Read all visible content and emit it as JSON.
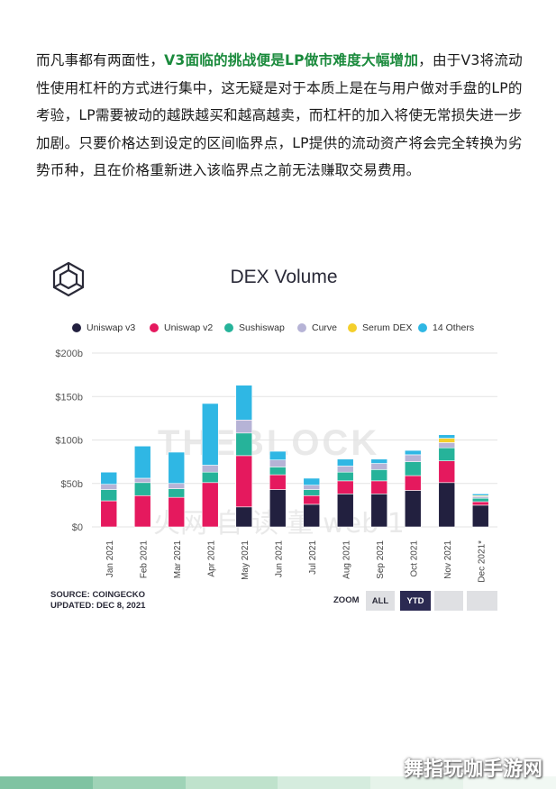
{
  "paragraph": {
    "before": "而凡事都有两面性，",
    "highlight": "V3面临的挑战便是LP做市难度大幅增加",
    "after": "，由于V3将流动性使用杠杆的方式进行集中，这无疑是对于本质上是在与用户做对手盘的LP的考验，LP需要被动的越跌越买和越高越卖，而杠杆的加入将使无常损失进一步加剧。只要价格达到设定的区间临界点，LP提供的流动资产将会完全转换为劣势币种，且在价格重新进入该临界点之前无法赚取交易费用。"
  },
  "colors": {
    "highlight": "#1a8a3c",
    "uniswap_v3": "#22203f",
    "uniswap_v2": "#e5195e",
    "sushiswap": "#26b39a",
    "curve": "#b6b3d6",
    "serum_dex": "#f4cf2b",
    "others": "#2fb7e4",
    "ytd_button": "#2b2a52"
  },
  "chart_data": {
    "type": "bar",
    "stacked": true,
    "title": "DEX Volume",
    "xlabel": "",
    "ylabel": "",
    "ylim": [
      0,
      200
    ],
    "yticks": [
      0,
      50,
      100,
      150,
      200
    ],
    "ytick_labels": [
      "$0",
      "$50b",
      "$100b",
      "$150b",
      "$200b"
    ],
    "categories": [
      "Jan 2021",
      "Feb 2021",
      "Mar 2021",
      "Apr 2021",
      "May 2021",
      "Jun 2021",
      "Jul 2021",
      "Aug 2021",
      "Sep 2021",
      "Oct 2021",
      "Nov 2021",
      "Dec 2021*"
    ],
    "series": [
      {
        "name": "Uniswap v3",
        "color": "#22203f",
        "values": [
          0,
          0,
          0,
          0,
          23,
          43,
          26,
          38,
          38,
          42,
          51,
          25
        ]
      },
      {
        "name": "Uniswap v2",
        "color": "#e5195e",
        "values": [
          30,
          36,
          34,
          51,
          59,
          17,
          10,
          15,
          15,
          17,
          25,
          4
        ]
      },
      {
        "name": "Sushiswap",
        "color": "#26b39a",
        "values": [
          13,
          15,
          10,
          12,
          26,
          9,
          7,
          10,
          13,
          16,
          15,
          4
        ]
      },
      {
        "name": "Curve",
        "color": "#b6b3d6",
        "values": [
          6,
          5,
          6,
          8,
          15,
          8,
          5,
          7,
          7,
          8,
          6,
          2
        ]
      },
      {
        "name": "Serum DEX",
        "color": "#f4cf2b",
        "values": [
          0,
          0,
          0,
          0,
          0,
          0,
          0,
          0,
          0,
          0,
          5,
          1
        ]
      },
      {
        "name": "14 Others",
        "color": "#2fb7e4",
        "values": [
          14,
          37,
          36,
          71,
          40,
          10,
          8,
          8,
          5,
          5,
          4,
          2
        ]
      }
    ],
    "legend_position": "top",
    "grid": true
  },
  "source": {
    "line1": "SOURCE: COINGECKO",
    "line2": "UPDATED: DEC 8, 2021"
  },
  "zoom": {
    "label": "ZOOM",
    "all": "ALL",
    "ytd": "YTD"
  },
  "watermark": {
    "text": "舞指玩咖手游网",
    "faint_block": "THEBLOCK",
    "faint_cn": "火网 自 读 董 web 1"
  }
}
